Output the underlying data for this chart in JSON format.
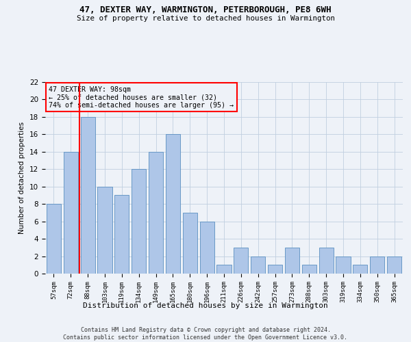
{
  "title1": "47, DEXTER WAY, WARMINGTON, PETERBOROUGH, PE8 6WH",
  "title2": "Size of property relative to detached houses in Warmington",
  "xlabel": "Distribution of detached houses by size in Warmington",
  "ylabel": "Number of detached properties",
  "categories": [
    "57sqm",
    "72sqm",
    "88sqm",
    "103sqm",
    "119sqm",
    "134sqm",
    "149sqm",
    "165sqm",
    "180sqm",
    "196sqm",
    "211sqm",
    "226sqm",
    "242sqm",
    "257sqm",
    "273sqm",
    "288sqm",
    "303sqm",
    "319sqm",
    "334sqm",
    "350sqm",
    "365sqm"
  ],
  "values": [
    8,
    14,
    18,
    10,
    9,
    12,
    14,
    16,
    7,
    6,
    1,
    3,
    2,
    1,
    3,
    1,
    3,
    2,
    1,
    2,
    2
  ],
  "bar_color": "#aec6e8",
  "bar_edge_color": "#5a8fc0",
  "red_line_x": 1.5,
  "annotation_title": "47 DEXTER WAY: 98sqm",
  "annotation_line1": "← 25% of detached houses are smaller (32)",
  "annotation_line2": "74% of semi-detached houses are larger (95) →",
  "ylim": [
    0,
    22
  ],
  "yticks": [
    0,
    2,
    4,
    6,
    8,
    10,
    12,
    14,
    16,
    18,
    20,
    22
  ],
  "footer1": "Contains HM Land Registry data © Crown copyright and database right 2024.",
  "footer2": "Contains public sector information licensed under the Open Government Licence v3.0.",
  "background_color": "#eef2f8",
  "grid_color": "#c0cfe0"
}
